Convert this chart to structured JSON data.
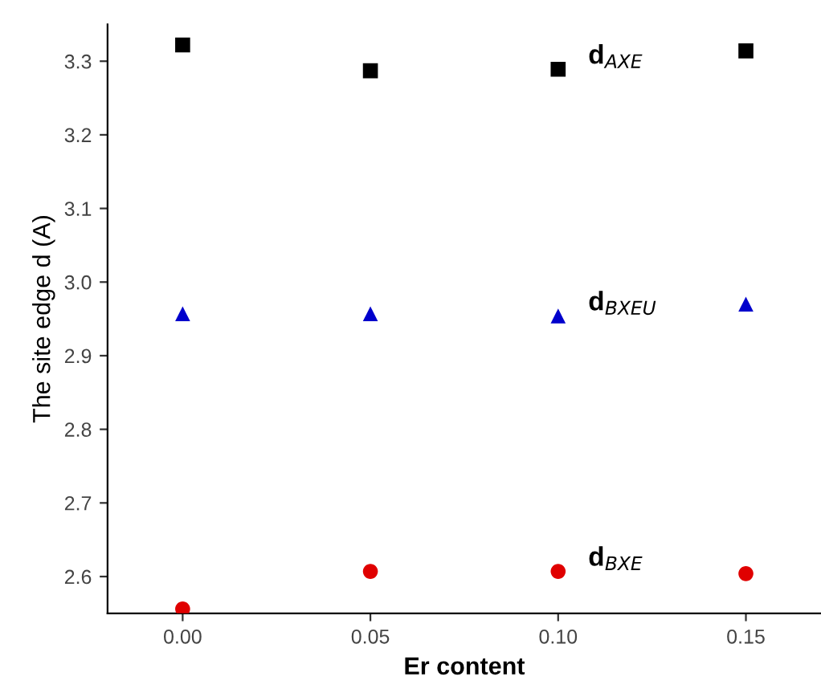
{
  "chart_data": {
    "type": "scatter",
    "xlabel": "Er content",
    "ylabel": "The site edge d (A)",
    "x": [
      0.0,
      0.05,
      0.1,
      0.15
    ],
    "series": [
      {
        "name": "d$_{AXE}$",
        "color": "#000000",
        "marker": "square",
        "values": [
          3.322,
          3.287,
          3.289,
          3.314
        ]
      },
      {
        "name": "d$_{BXEU}$",
        "color": "#0000cc",
        "marker": "triangle",
        "values": [
          2.957,
          2.957,
          2.954,
          2.97
        ]
      },
      {
        "name": "d$_{BXE}$",
        "color": "#e00000",
        "marker": "circle",
        "values": [
          2.556,
          2.607,
          2.607,
          2.604
        ]
      }
    ],
    "xlim": [
      -0.02,
      0.17
    ],
    "ylim": [
      2.55,
      3.35
    ],
    "xticks": [
      {
        "value": 0.0,
        "label": "0.00"
      },
      0.05,
      {
        "value": 0.1,
        "label": "0.10"
      },
      0.15
    ],
    "yticks": [
      2.6,
      2.7,
      2.8,
      2.9,
      {
        "value": 3.0,
        "label": "3.0"
      },
      3.1,
      3.2,
      3.3
    ],
    "grid": false,
    "legend": false
  }
}
